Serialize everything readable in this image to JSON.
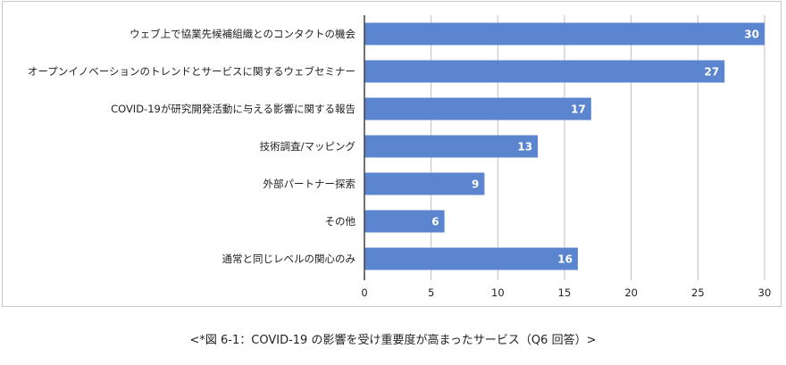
{
  "chart_data": {
    "type": "bar",
    "orientation": "horizontal",
    "categories": [
      "ウェブ上で協業先候補組織とのコンタクトの機会",
      "オープンイノベーションのトレンドとサービスに関するウェブセミナー",
      "COVID-19が研究開発活動に与える影響に関する報告",
      "技術調査/マッピング",
      "外部パートナー探索",
      "その他",
      "通常と同じレベルの関心のみ"
    ],
    "values": [
      30,
      27,
      17,
      13,
      9,
      6,
      16
    ],
    "xlim": [
      0,
      30
    ],
    "xticks": [
      "0",
      "5",
      "10",
      "15",
      "20",
      "25",
      "30"
    ],
    "grid": true,
    "data_labels": true,
    "legend": "none",
    "colors": {
      "bar": "#5b86cf",
      "bar_label": "#ffffff",
      "grid": "#bfbfbf",
      "axis": "#404040"
    }
  },
  "caption": "<*図 6-1：COVID-19 の影響を受け重要度が高まったサービス（Q6 回答）>"
}
